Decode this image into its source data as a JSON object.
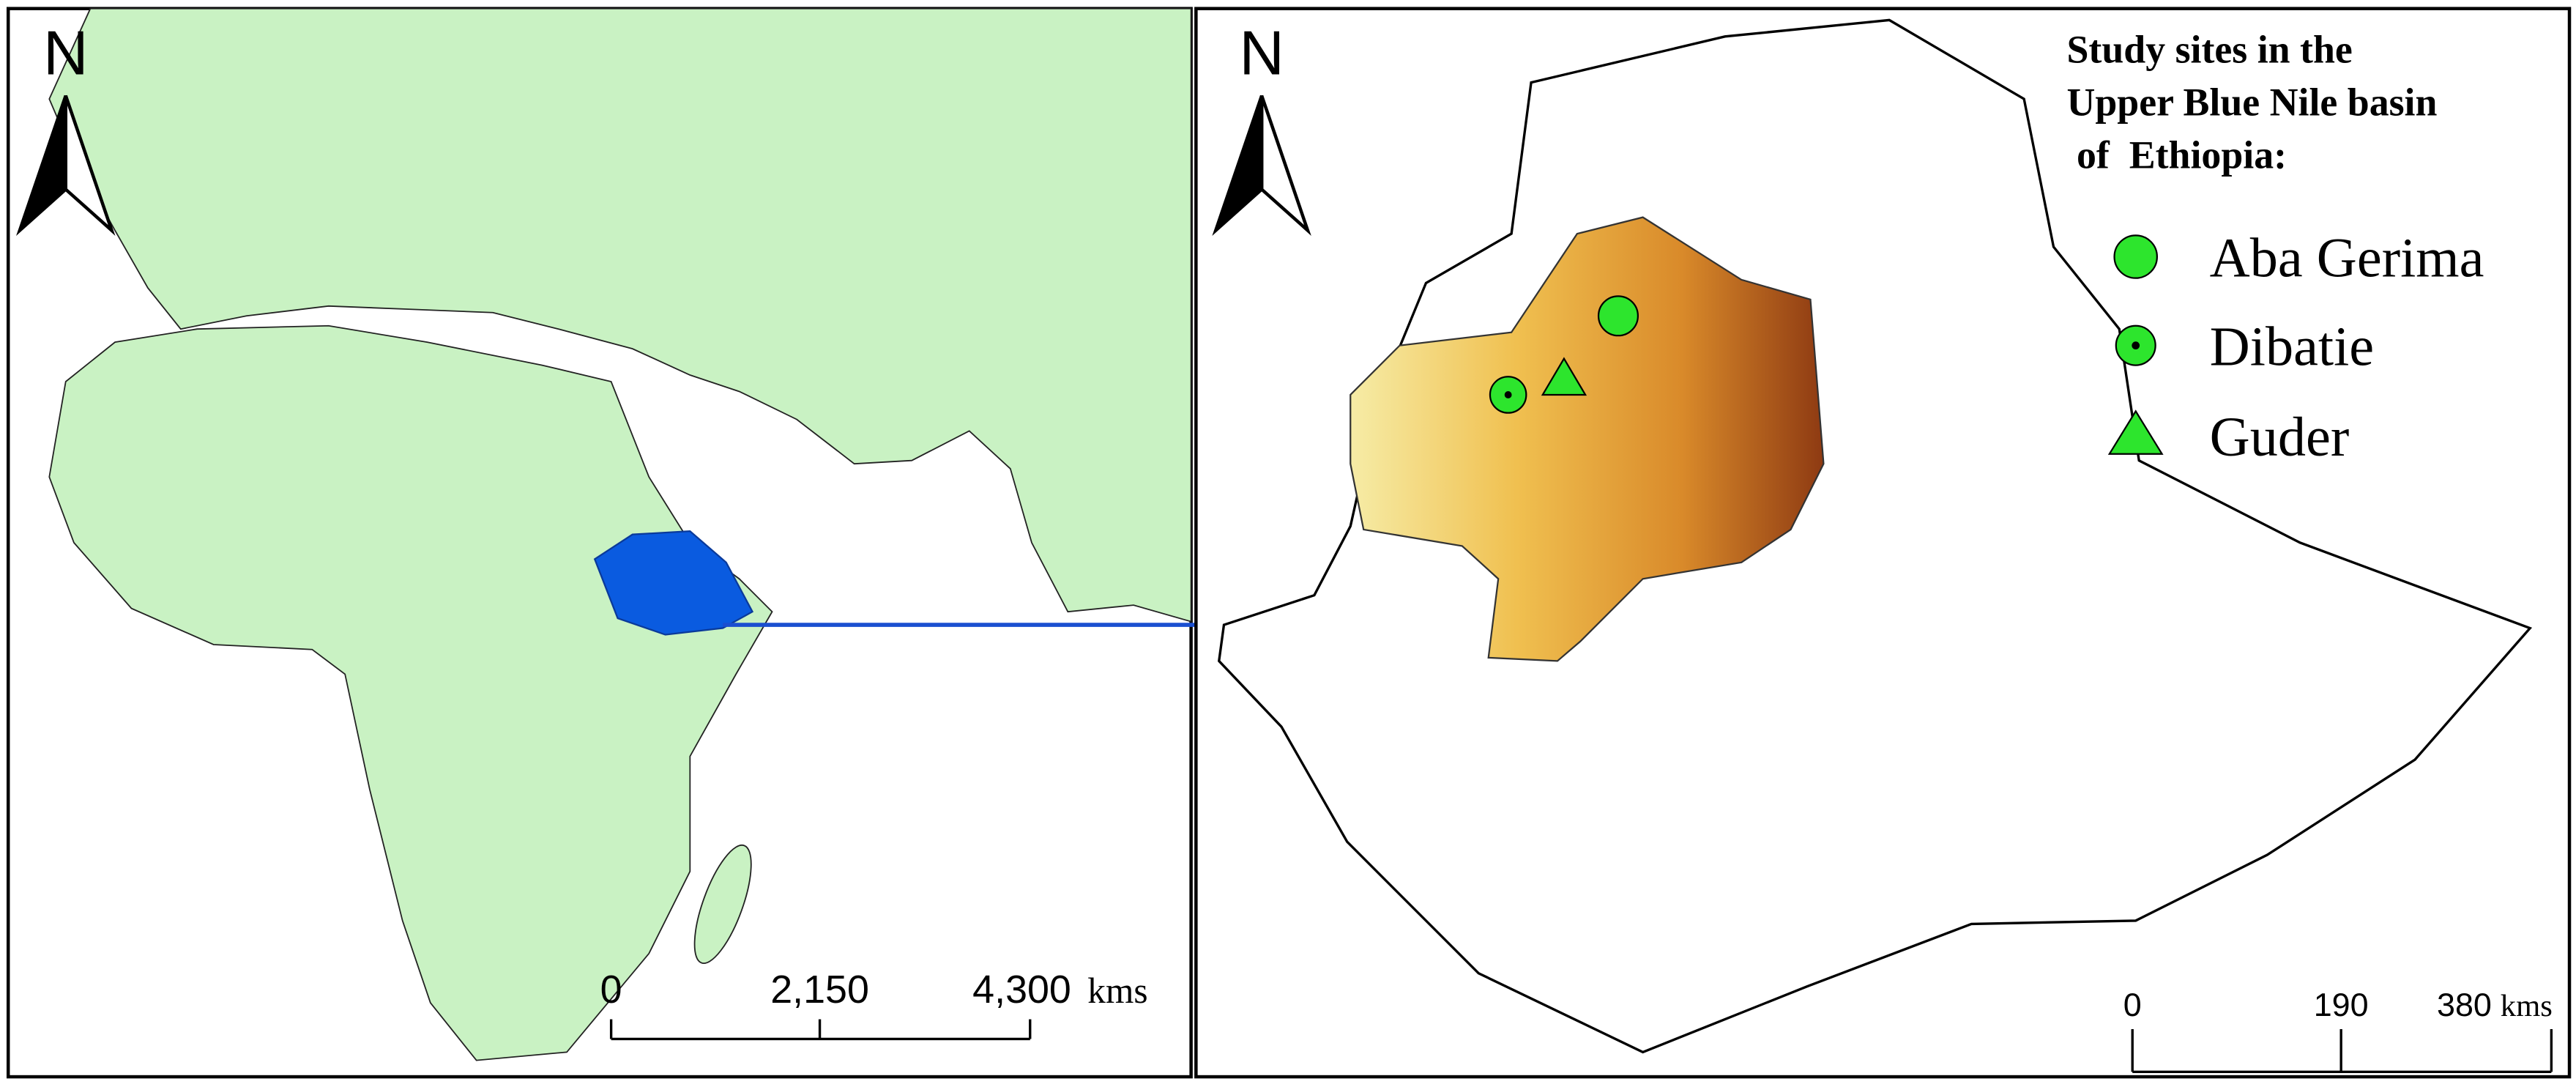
{
  "left_map": {
    "north_label": "N",
    "scale_bar": {
      "labels": [
        "0",
        "2,150",
        "4,300"
      ],
      "unit": "kms"
    }
  },
  "right_map": {
    "north_label": "N",
    "legend": {
      "title": [
        "Study sites in the",
        "Upper Blue Nile basin",
        "of  Ethiopia:"
      ],
      "items": [
        {
          "label": "Aba Gerima"
        },
        {
          "label": "Dibatie"
        },
        {
          "label": "Guder"
        }
      ]
    },
    "scale_bar": {
      "labels": [
        "0",
        "190",
        "380"
      ],
      "unit": "kms"
    }
  }
}
